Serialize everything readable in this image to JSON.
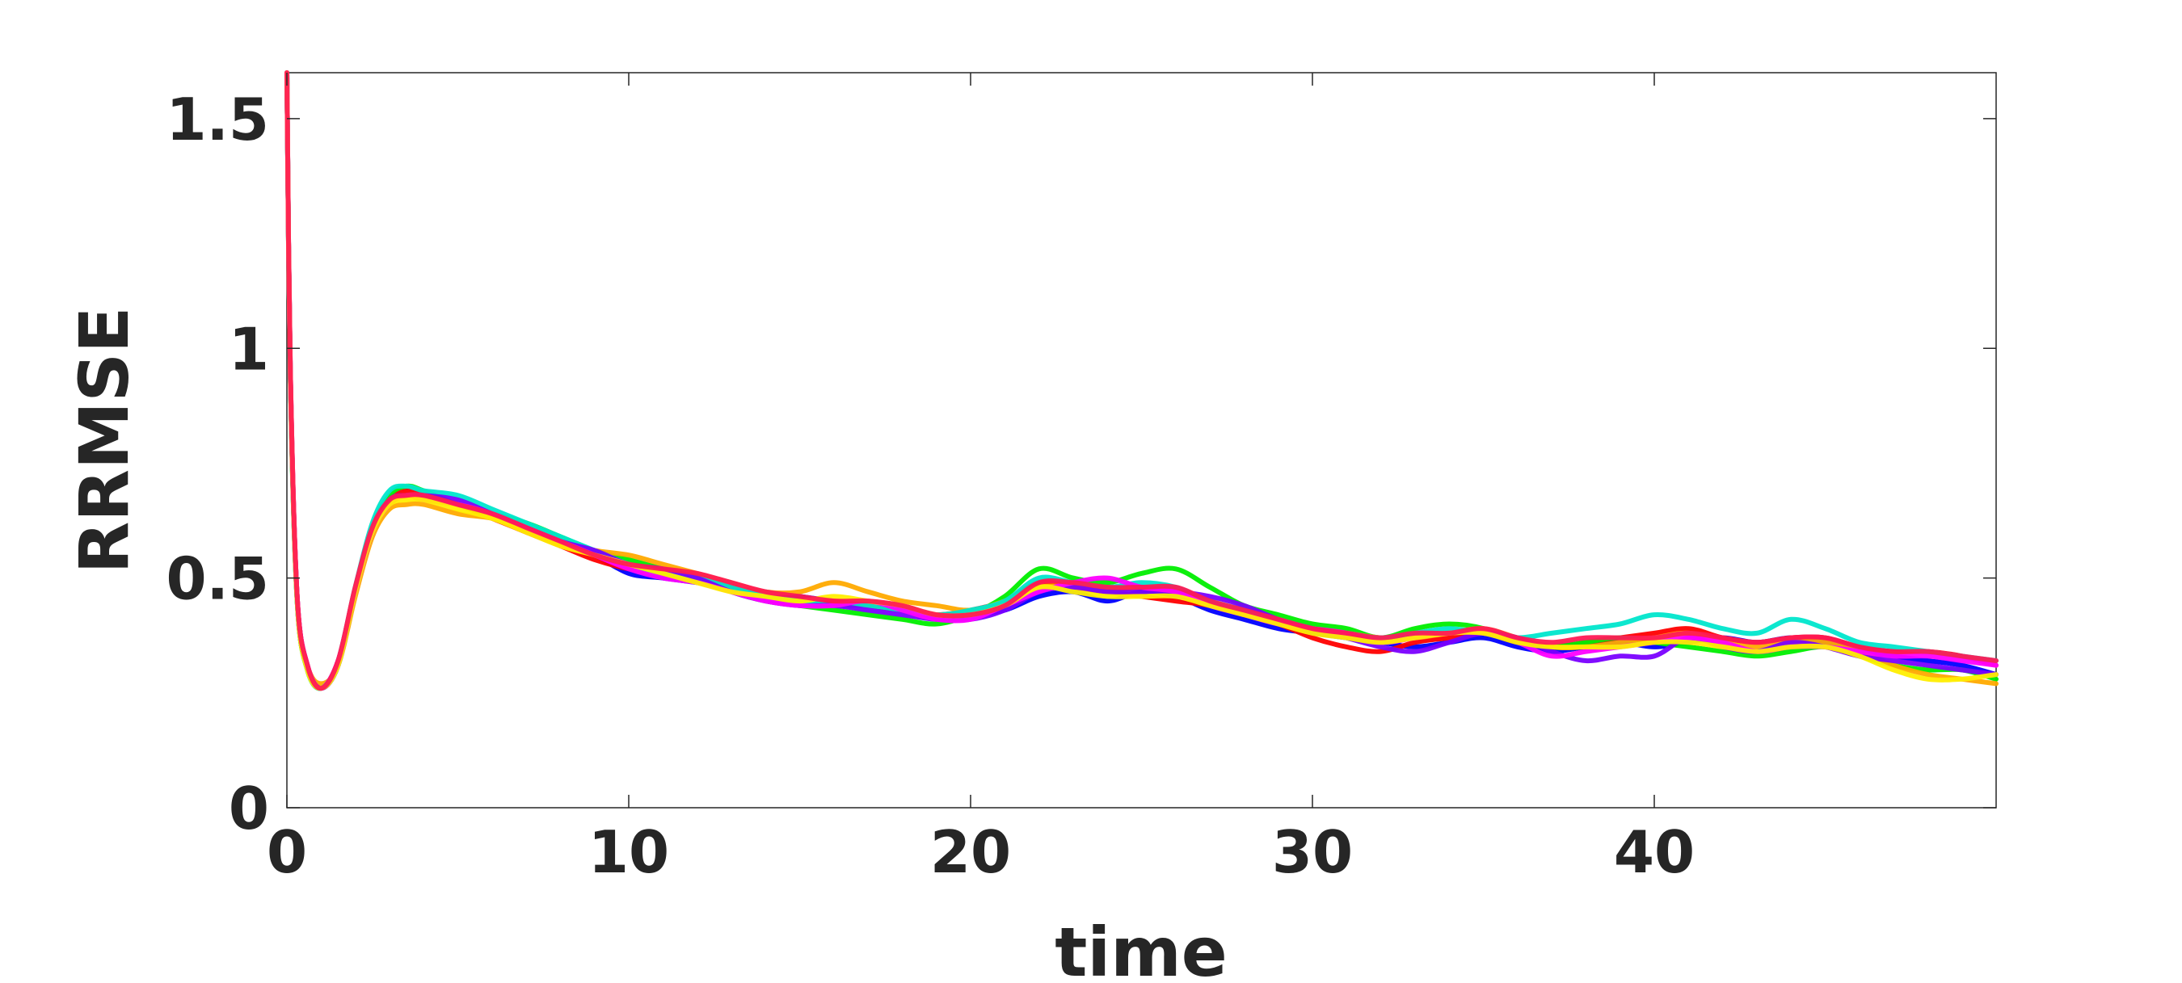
{
  "chart_data": {
    "type": "line",
    "title": "",
    "xlabel": "time",
    "ylabel": "RRMSE",
    "xlim": [
      0,
      50
    ],
    "ylim": [
      0,
      1.6
    ],
    "xticks": [
      0,
      10,
      20,
      30,
      40
    ],
    "xtick_labels": [
      "0",
      "10",
      "20",
      "30",
      "40"
    ],
    "yticks": [
      0,
      0.5,
      1,
      1.5
    ],
    "ytick_labels": [
      "0",
      "0.5",
      "1",
      "1.5"
    ],
    "grid": false,
    "legend": "none",
    "x": [
      0,
      0.1,
      0.3,
      0.6,
      1,
      1.5,
      2,
      2.5,
      3,
      3.5,
      4,
      5,
      6,
      7,
      8,
      9,
      10,
      11,
      12,
      13,
      14,
      15,
      16,
      17,
      18,
      19,
      20,
      21,
      22,
      23,
      24,
      25,
      26,
      27,
      28,
      29,
      30,
      31,
      32,
      33,
      34,
      35,
      36,
      37,
      38,
      39,
      40,
      41,
      42,
      43,
      44,
      45,
      46,
      47,
      48,
      49,
      50
    ],
    "series": [
      {
        "color": "#0000ff",
        "values": [
          1.6,
          0.95,
          0.45,
          0.3,
          0.26,
          0.31,
          0.47,
          0.6,
          0.66,
          0.68,
          0.67,
          0.66,
          0.64,
          0.61,
          0.58,
          0.55,
          0.51,
          0.5,
          0.49,
          0.48,
          0.47,
          0.46,
          0.45,
          0.44,
          0.43,
          0.42,
          0.42,
          0.43,
          0.46,
          0.47,
          0.45,
          0.47,
          0.46,
          0.43,
          0.41,
          0.39,
          0.38,
          0.37,
          0.36,
          0.35,
          0.36,
          0.37,
          0.35,
          0.34,
          0.35,
          0.36,
          0.35,
          0.36,
          0.37,
          0.36,
          0.37,
          0.36,
          0.34,
          0.33,
          0.32,
          0.31,
          0.29
        ]
      },
      {
        "color": "#ff0000",
        "values": [
          1.6,
          0.96,
          0.46,
          0.31,
          0.26,
          0.32,
          0.48,
          0.61,
          0.67,
          0.69,
          0.68,
          0.66,
          0.63,
          0.6,
          0.57,
          0.54,
          0.52,
          0.51,
          0.5,
          0.48,
          0.46,
          0.45,
          0.45,
          0.44,
          0.43,
          0.42,
          0.43,
          0.45,
          0.49,
          0.48,
          0.47,
          0.46,
          0.45,
          0.44,
          0.42,
          0.4,
          0.37,
          0.35,
          0.34,
          0.36,
          0.37,
          0.38,
          0.36,
          0.35,
          0.36,
          0.37,
          0.38,
          0.39,
          0.37,
          0.36,
          0.37,
          0.37,
          0.35,
          0.34,
          0.34,
          0.33,
          0.31
        ]
      },
      {
        "color": "#00ee00",
        "values": [
          1.6,
          0.94,
          0.45,
          0.3,
          0.26,
          0.31,
          0.47,
          0.61,
          0.68,
          0.7,
          0.69,
          0.66,
          0.64,
          0.62,
          0.59,
          0.56,
          0.54,
          0.52,
          0.5,
          0.47,
          0.45,
          0.44,
          0.43,
          0.42,
          0.41,
          0.4,
          0.42,
          0.46,
          0.52,
          0.5,
          0.49,
          0.51,
          0.52,
          0.48,
          0.44,
          0.42,
          0.4,
          0.39,
          0.37,
          0.39,
          0.4,
          0.39,
          0.36,
          0.35,
          0.36,
          0.37,
          0.36,
          0.35,
          0.34,
          0.33,
          0.34,
          0.35,
          0.33,
          0.31,
          0.3,
          0.3,
          0.28
        ]
      },
      {
        "color": "#ffaa00",
        "values": [
          1.6,
          0.95,
          0.46,
          0.31,
          0.27,
          0.31,
          0.46,
          0.59,
          0.65,
          0.66,
          0.66,
          0.64,
          0.63,
          0.61,
          0.58,
          0.56,
          0.55,
          0.53,
          0.51,
          0.49,
          0.47,
          0.47,
          0.49,
          0.47,
          0.45,
          0.44,
          0.43,
          0.45,
          0.48,
          0.48,
          0.47,
          0.48,
          0.47,
          0.45,
          0.43,
          0.41,
          0.39,
          0.38,
          0.37,
          0.37,
          0.38,
          0.39,
          0.37,
          0.35,
          0.35,
          0.36,
          0.37,
          0.38,
          0.36,
          0.35,
          0.36,
          0.36,
          0.34,
          0.31,
          0.29,
          0.28,
          0.27
        ]
      },
      {
        "color": "#00e6cc",
        "values": [
          1.6,
          0.95,
          0.45,
          0.3,
          0.26,
          0.32,
          0.48,
          0.62,
          0.69,
          0.7,
          0.69,
          0.68,
          0.65,
          0.62,
          0.59,
          0.56,
          0.53,
          0.51,
          0.5,
          0.48,
          0.46,
          0.45,
          0.44,
          0.44,
          0.43,
          0.42,
          0.43,
          0.45,
          0.5,
          0.49,
          0.48,
          0.49,
          0.48,
          0.45,
          0.43,
          0.41,
          0.39,
          0.38,
          0.37,
          0.38,
          0.39,
          0.38,
          0.37,
          0.38,
          0.39,
          0.4,
          0.42,
          0.41,
          0.39,
          0.38,
          0.41,
          0.39,
          0.36,
          0.35,
          0.34,
          0.33,
          0.32
        ]
      },
      {
        "color": "#7a00ff",
        "values": [
          1.6,
          0.95,
          0.46,
          0.31,
          0.26,
          0.31,
          0.47,
          0.6,
          0.67,
          0.68,
          0.68,
          0.67,
          0.64,
          0.61,
          0.58,
          0.56,
          0.53,
          0.52,
          0.5,
          0.47,
          0.45,
          0.44,
          0.44,
          0.43,
          0.42,
          0.41,
          0.41,
          0.43,
          0.47,
          0.48,
          0.47,
          0.47,
          0.47,
          0.46,
          0.44,
          0.41,
          0.39,
          0.37,
          0.35,
          0.34,
          0.36,
          0.38,
          0.37,
          0.34,
          0.32,
          0.33,
          0.33,
          0.37,
          0.35,
          0.34,
          0.36,
          0.35,
          0.33,
          0.32,
          0.31,
          0.3,
          0.29
        ]
      },
      {
        "color": "#ff00ff",
        "values": [
          1.6,
          0.96,
          0.46,
          0.31,
          0.26,
          0.32,
          0.47,
          0.6,
          0.66,
          0.68,
          0.67,
          0.66,
          0.64,
          0.61,
          0.58,
          0.55,
          0.52,
          0.5,
          0.49,
          0.47,
          0.45,
          0.44,
          0.44,
          0.45,
          0.43,
          0.41,
          0.41,
          0.44,
          0.47,
          0.49,
          0.5,
          0.48,
          0.47,
          0.44,
          0.42,
          0.4,
          0.39,
          0.38,
          0.36,
          0.37,
          0.38,
          0.38,
          0.36,
          0.33,
          0.34,
          0.35,
          0.36,
          0.37,
          0.36,
          0.34,
          0.35,
          0.35,
          0.34,
          0.33,
          0.33,
          0.32,
          0.31
        ]
      },
      {
        "color": "#ffee00",
        "values": [
          1.6,
          0.95,
          0.45,
          0.3,
          0.26,
          0.31,
          0.47,
          0.6,
          0.66,
          0.67,
          0.67,
          0.65,
          0.63,
          0.6,
          0.57,
          0.55,
          0.53,
          0.51,
          0.49,
          0.47,
          0.46,
          0.45,
          0.46,
          0.45,
          0.44,
          0.42,
          0.42,
          0.44,
          0.48,
          0.47,
          0.46,
          0.46,
          0.46,
          0.44,
          0.42,
          0.4,
          0.38,
          0.37,
          0.36,
          0.37,
          0.38,
          0.38,
          0.36,
          0.35,
          0.35,
          0.35,
          0.36,
          0.36,
          0.35,
          0.34,
          0.35,
          0.35,
          0.33,
          0.3,
          0.28,
          0.28,
          0.29
        ]
      },
      {
        "color": "#ff1a55",
        "values": [
          1.6,
          0.96,
          0.46,
          0.31,
          0.26,
          0.32,
          0.48,
          0.61,
          0.67,
          0.68,
          0.68,
          0.66,
          0.64,
          0.61,
          0.58,
          0.55,
          0.53,
          0.52,
          0.51,
          0.49,
          0.47,
          0.46,
          0.45,
          0.45,
          0.44,
          0.42,
          0.42,
          0.44,
          0.49,
          0.49,
          0.48,
          0.48,
          0.48,
          0.45,
          0.43,
          0.41,
          0.39,
          0.38,
          0.37,
          0.38,
          0.38,
          0.39,
          0.37,
          0.36,
          0.37,
          0.37,
          0.37,
          0.38,
          0.37,
          0.36,
          0.37,
          0.37,
          0.35,
          0.34,
          0.34,
          0.33,
          0.32
        ]
      }
    ]
  }
}
